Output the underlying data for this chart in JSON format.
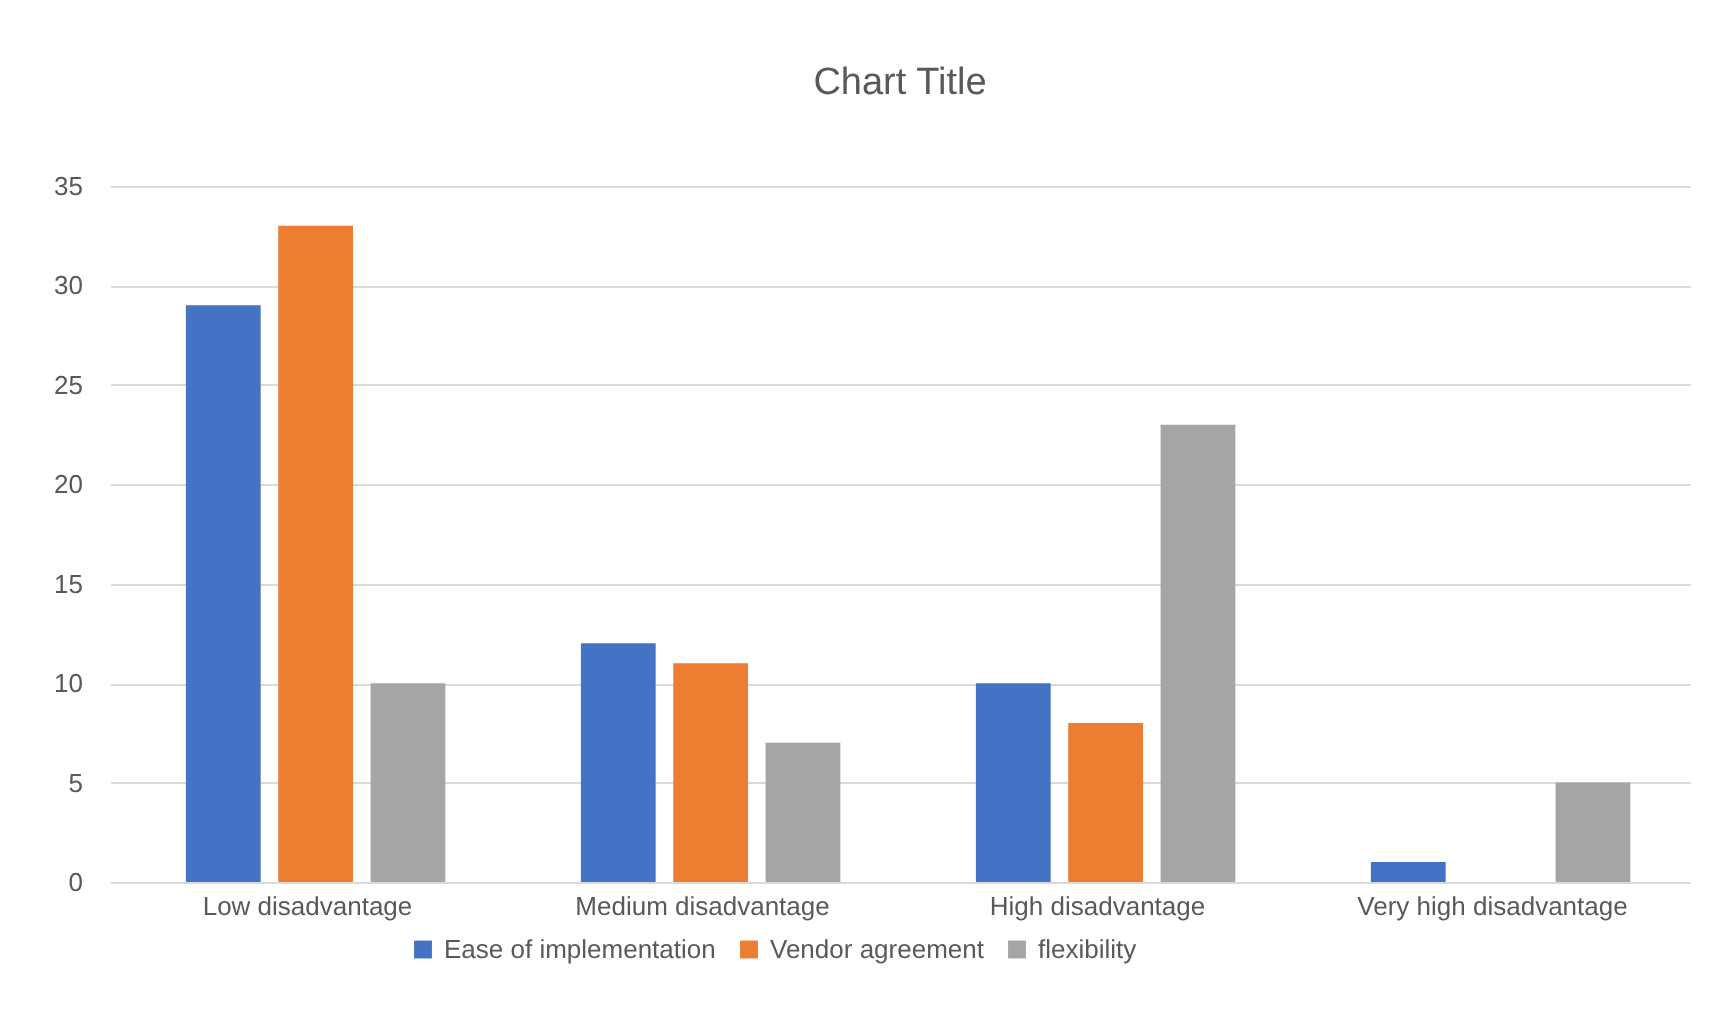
{
  "chart_data": {
    "type": "bar",
    "title": "Chart Title",
    "categories": [
      "Low disadvantage",
      "Medium disadvantage",
      "High disadvantage",
      "Very high disadvantage"
    ],
    "series": [
      {
        "name": "Ease of implementation",
        "color": "#4472c4",
        "values": [
          29,
          12,
          10,
          1
        ]
      },
      {
        "name": "Vendor agreement",
        "color": "#ed7d31",
        "values": [
          33,
          11,
          8,
          0
        ]
      },
      {
        "name": "flexibility",
        "color": "#a5a5a5",
        "values": [
          10,
          7,
          23,
          5
        ]
      }
    ],
    "ylim": [
      0,
      35
    ],
    "yticks": [
      0,
      5,
      10,
      15,
      20,
      25,
      30,
      35
    ],
    "grid": "y",
    "legend": "bottom"
  }
}
